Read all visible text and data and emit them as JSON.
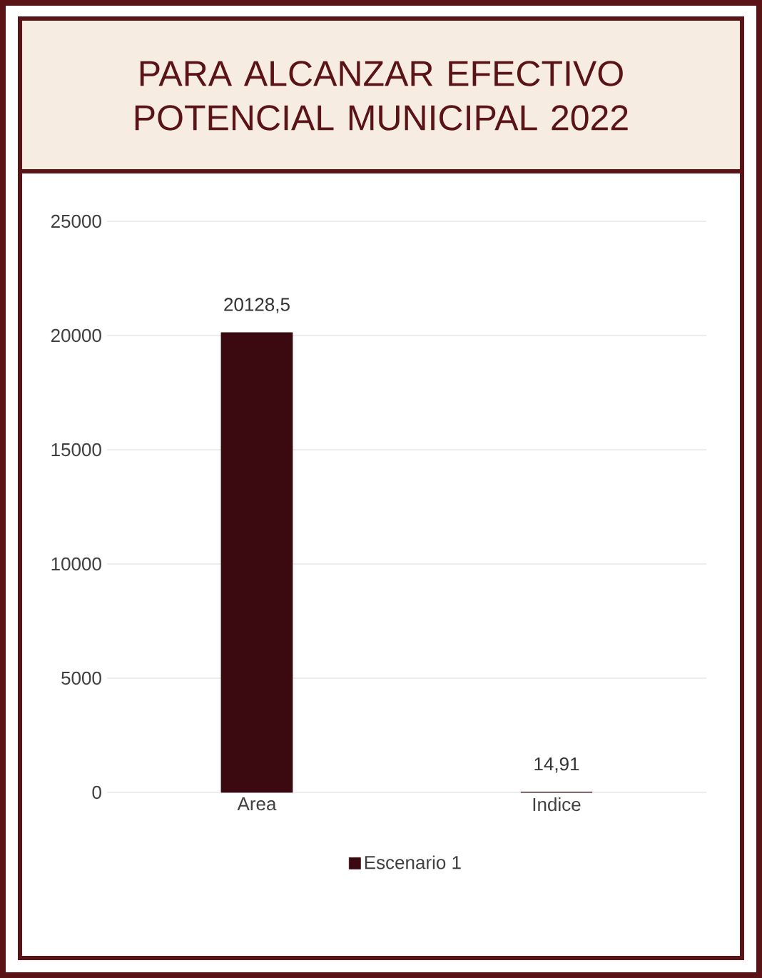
{
  "chart_data": {
    "type": "bar",
    "title": "PARA ALCANZAR EFECTIVO POTENCIAL MUNICIPAL 2022",
    "categories": [
      "Area",
      "Indice"
    ],
    "series": [
      {
        "name": "Escenario 1",
        "color": "#3b0a10",
        "values": [
          20128.5,
          14.91
        ],
        "value_labels": [
          "20128,5",
          "14,91"
        ]
      }
    ],
    "ylim": [
      0,
      25000
    ],
    "yticks": [
      0,
      5000,
      10000,
      15000,
      20000,
      25000
    ],
    "grid": "y",
    "legend": "bottom"
  }
}
